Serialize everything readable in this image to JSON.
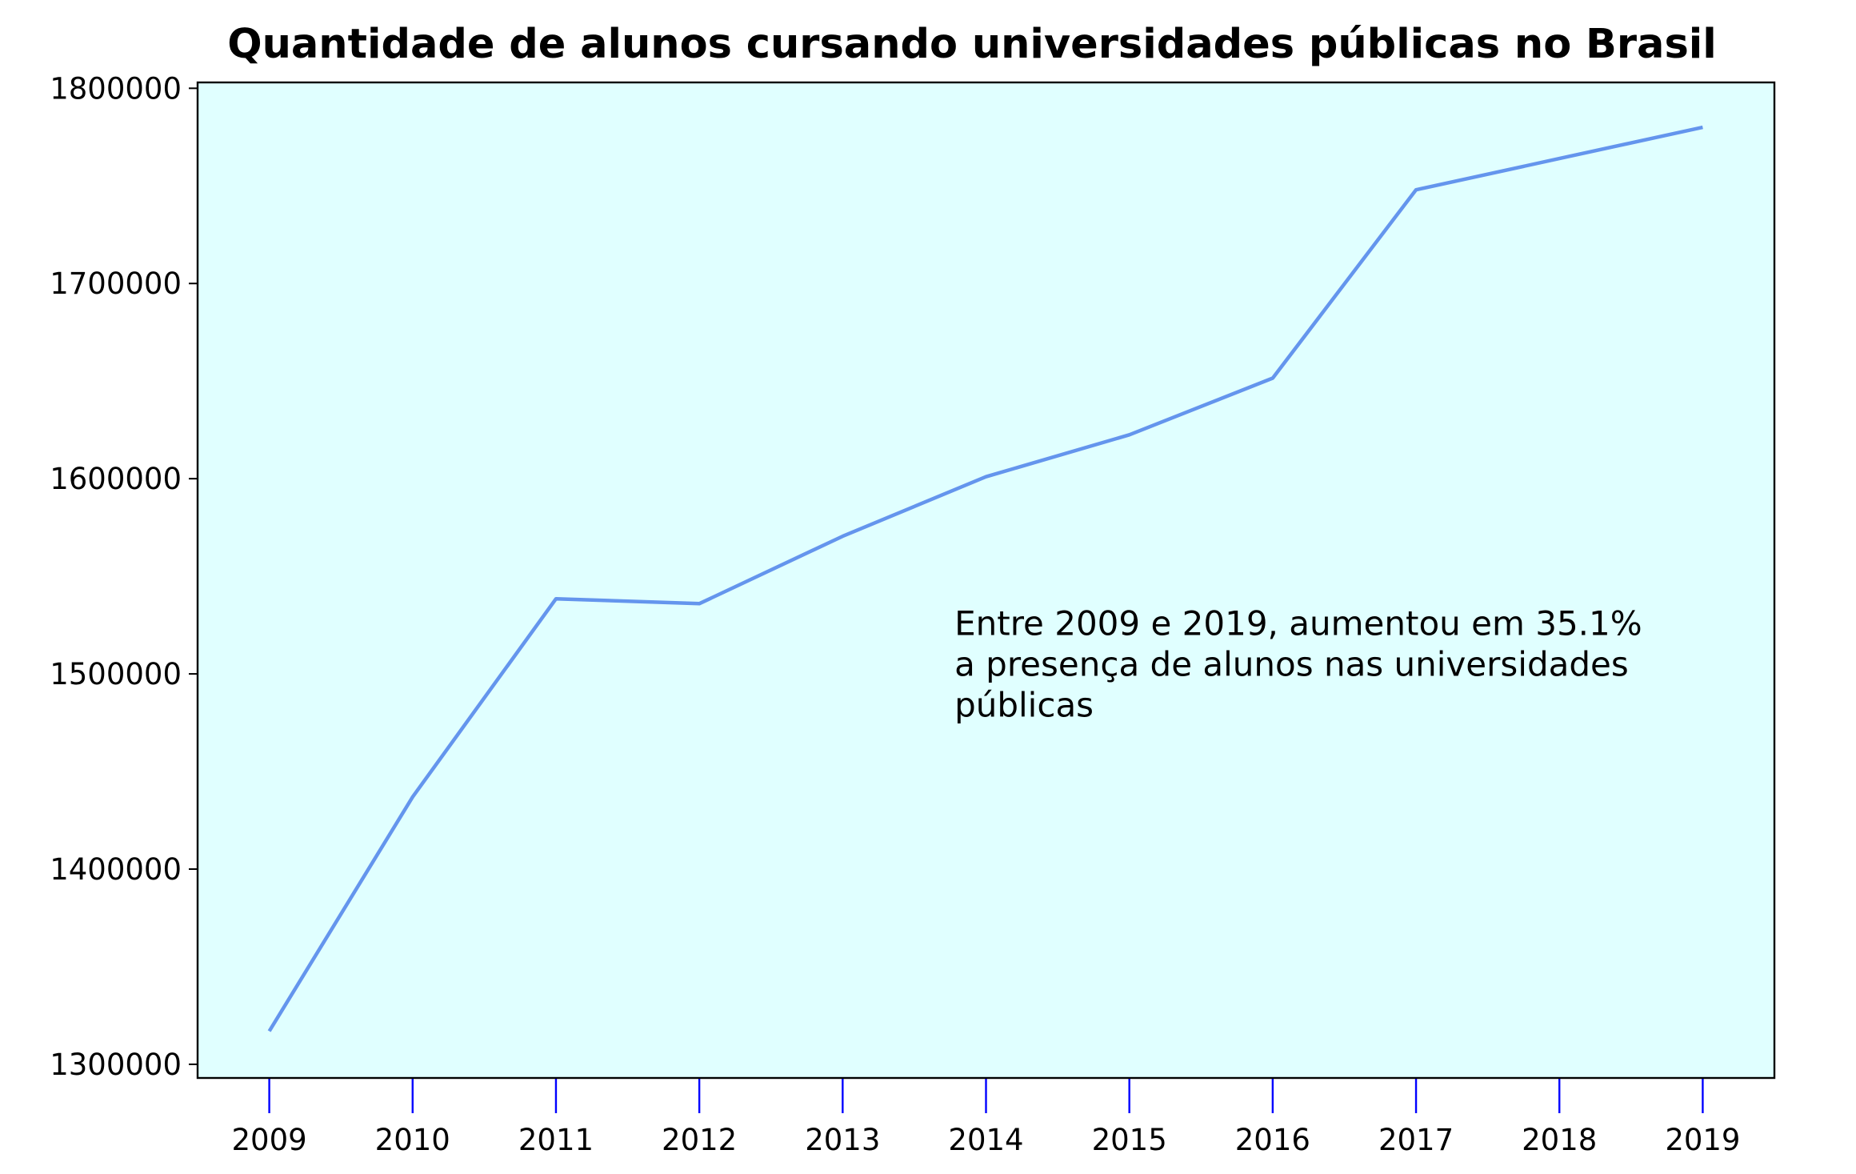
{
  "chart_data": {
    "type": "line",
    "title": "Quantidade de alunos cursando universidades públicas no Brasil",
    "xlabel": "",
    "ylabel": "",
    "x": [
      2009,
      2010,
      2011,
      2012,
      2013,
      2014,
      2015,
      2016,
      2017,
      2018,
      2019
    ],
    "series": [
      {
        "values": [
          1317000,
          1437000,
          1538500,
          1536000,
          1570500,
          1601000,
          1622500,
          1651500,
          1748000,
          1764000,
          1780000
        ]
      }
    ],
    "xticks": [
      "2009",
      "2010",
      "2011",
      "2012",
      "2013",
      "2014",
      "2015",
      "2016",
      "2017",
      "2018",
      "2019"
    ],
    "yticks": [
      "1300000",
      "1400000",
      "1500000",
      "1600000",
      "1700000",
      "1800000"
    ],
    "ylim": [
      1293000,
      1803000
    ],
    "xlim": [
      2008.5,
      2019.5
    ],
    "grid": false,
    "annotation": {
      "lines": [
        "Entre 2009 e 2019, aumentou em 35.1%",
        "a presença de alunos nas universidades",
        "públicas"
      ]
    },
    "colors": {
      "line": "#6495ED",
      "plot_background": "#E0FFFF",
      "x_tick": "#0000FF",
      "axis": "#000000"
    }
  }
}
